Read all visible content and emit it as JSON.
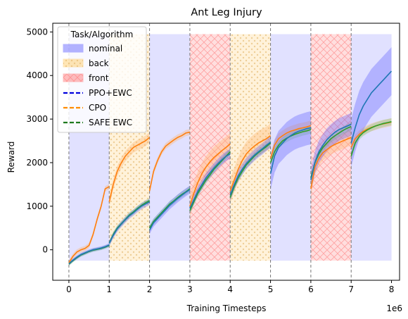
{
  "chart_data": {
    "type": "line",
    "title": "Ant Leg Injury",
    "xlabel": "Training Timesteps",
    "ylabel": "Reward",
    "x_offset_label": "1e6",
    "xlim": [
      -0.4,
      8.2
    ],
    "ylim": [
      -700,
      5200
    ],
    "x_ticks": [
      0,
      1,
      2,
      3,
      4,
      5,
      6,
      7,
      8
    ],
    "x_tick_labels": [
      "0",
      "1",
      "2",
      "3",
      "4",
      "5",
      "6",
      "7",
      "8"
    ],
    "y_ticks": [
      0,
      1000,
      2000,
      3000,
      4000,
      5000
    ],
    "y_tick_labels": [
      "0",
      "1000",
      "2000",
      "3000",
      "4000",
      "5000"
    ],
    "task_boundaries": [
      0,
      1,
      2,
      3,
      4,
      5,
      6,
      7
    ],
    "task_regions": {
      "y_range": [
        -250,
        4950
      ],
      "spans": [
        {
          "task": "nominal",
          "x": [
            0,
            1
          ]
        },
        {
          "task": "back",
          "x": [
            1,
            2
          ]
        },
        {
          "task": "nominal",
          "x": [
            2,
            3
          ]
        },
        {
          "task": "front",
          "x": [
            3,
            4
          ]
        },
        {
          "task": "back",
          "x": [
            4,
            5
          ]
        },
        {
          "task": "nominal",
          "x": [
            5,
            6
          ]
        },
        {
          "task": "front",
          "x": [
            6,
            7
          ]
        },
        {
          "task": "nominal",
          "x": [
            7,
            8
          ]
        }
      ]
    },
    "legend": {
      "title": "Task/Algorithm",
      "placement": "upper-left",
      "entries": [
        {
          "label": "nominal",
          "kind": "patch",
          "task": "nominal"
        },
        {
          "label": "back",
          "kind": "patch",
          "task": "back"
        },
        {
          "label": "front",
          "kind": "patch",
          "task": "front"
        },
        {
          "label": "PPO+EWC",
          "kind": "line",
          "color": "#0000dd"
        },
        {
          "label": "CPO",
          "kind": "line",
          "color": "#ff8c00"
        },
        {
          "label": "SAFE EWC",
          "kind": "line",
          "color": "#1f7a1f"
        }
      ]
    },
    "task_colors": {
      "nominal": "#7777ff",
      "back": "#ffd27a",
      "front": "#ff8888"
    },
    "series": [
      {
        "name": "CPO",
        "color": "#ff7f0e",
        "band_color": "#ffb366",
        "segments": [
          {
            "x": [
              0,
              0.1,
              0.2,
              0.3,
              0.4,
              0.5,
              0.6,
              0.7,
              0.8,
              0.9,
              1.0
            ],
            "y": [
              -300,
              -150,
              -50,
              0,
              30,
              100,
              350,
              700,
              1000,
              1400,
              1450
            ],
            "band": 60
          },
          {
            "x": [
              1.0,
              1.1,
              1.2,
              1.3,
              1.4,
              1.5,
              1.6,
              1.7,
              1.8,
              1.9,
              2.0
            ],
            "y": [
              1100,
              1500,
              1800,
              2000,
              2150,
              2250,
              2350,
              2400,
              2450,
              2500,
              2580
            ],
            "band": 120
          },
          {
            "x": [
              2.0,
              2.1,
              2.2,
              2.3,
              2.4,
              2.5,
              2.6,
              2.7,
              2.8,
              2.9,
              3.0
            ],
            "y": [
              1350,
              1800,
              2050,
              2250,
              2380,
              2450,
              2520,
              2580,
              2620,
              2680,
              2700
            ],
            "band": 70
          },
          {
            "x": [
              3.0,
              3.1,
              3.2,
              3.3,
              3.4,
              3.5,
              3.6,
              3.7,
              3.8,
              3.9,
              4.0
            ],
            "y": [
              1000,
              1300,
              1550,
              1750,
              1900,
              2020,
              2120,
              2200,
              2280,
              2350,
              2430
            ],
            "band": 250
          },
          {
            "x": [
              4.0,
              4.1,
              4.2,
              4.3,
              4.4,
              4.5,
              4.6,
              4.7,
              4.8,
              4.9,
              5.0
            ],
            "y": [
              1350,
              1600,
              1850,
              2050,
              2200,
              2300,
              2380,
              2450,
              2500,
              2550,
              2620
            ],
            "band": 280
          },
          {
            "x": [
              5.0,
              5.1,
              5.2,
              5.3,
              5.4,
              5.5,
              5.6,
              5.7,
              5.8,
              5.9,
              6.0
            ],
            "y": [
              2100,
              2400,
              2550,
              2620,
              2680,
              2720,
              2750,
              2780,
              2800,
              2820,
              2850
            ],
            "band": 120
          },
          {
            "x": [
              6.0,
              6.1,
              6.2,
              6.3,
              6.4,
              6.5,
              6.6,
              6.7,
              6.8,
              6.9,
              7.0
            ],
            "y": [
              1400,
              1900,
              2100,
              2230,
              2300,
              2370,
              2420,
              2460,
              2500,
              2540,
              2580
            ],
            "band": 180
          },
          {
            "x": [
              7.0,
              7.1,
              7.2,
              7.3,
              7.4,
              7.5,
              7.6,
              7.7,
              7.8,
              7.9,
              8.0
            ],
            "y": [
              2350,
              2550,
              2650,
              2720,
              2770,
              2810,
              2840,
              2870,
              2890,
              2910,
              2930
            ],
            "band": 90
          }
        ]
      },
      {
        "name": "SAFE EWC",
        "color": "#2ca02c",
        "band_color": "#7fcc7f",
        "segments": [
          {
            "x": [
              0,
              0.1,
              0.2,
              0.3,
              0.4,
              0.5,
              0.6,
              0.7,
              0.8,
              0.9,
              1.0
            ],
            "y": [
              -330,
              -250,
              -180,
              -120,
              -80,
              -40,
              -10,
              10,
              30,
              60,
              100
            ],
            "band": 40
          },
          {
            "x": [
              1.0,
              1.1,
              1.2,
              1.3,
              1.4,
              1.5,
              1.6,
              1.7,
              1.8,
              1.9,
              2.0
            ],
            "y": [
              150,
              350,
              500,
              600,
              700,
              800,
              870,
              950,
              1020,
              1080,
              1130
            ],
            "band": 60
          },
          {
            "x": [
              2.0,
              2.1,
              2.2,
              2.3,
              2.4,
              2.5,
              2.6,
              2.7,
              2.8,
              2.9,
              3.0
            ],
            "y": [
              500,
              650,
              750,
              850,
              950,
              1050,
              1120,
              1200,
              1270,
              1330,
              1400
            ],
            "band": 70
          },
          {
            "x": [
              3.0,
              3.1,
              3.2,
              3.3,
              3.4,
              3.5,
              3.6,
              3.7,
              3.8,
              3.9,
              4.0
            ],
            "y": [
              900,
              1100,
              1300,
              1450,
              1600,
              1720,
              1850,
              1950,
              2050,
              2150,
              2250
            ],
            "band": 80
          },
          {
            "x": [
              4.0,
              4.1,
              4.2,
              4.3,
              4.4,
              4.5,
              4.6,
              4.7,
              4.8,
              4.9,
              5.0
            ],
            "y": [
              1200,
              1450,
              1650,
              1800,
              1950,
              2050,
              2150,
              2230,
              2300,
              2370,
              2450
            ],
            "band": 80
          },
          {
            "x": [
              5.0,
              5.1,
              5.2,
              5.3,
              5.4,
              5.5,
              5.6,
              5.7,
              5.8,
              5.9,
              6.0
            ],
            "y": [
              2000,
              2250,
              2400,
              2500,
              2560,
              2610,
              2650,
              2680,
              2710,
              2730,
              2760
            ],
            "band": 90
          },
          {
            "x": [
              6.0,
              6.1,
              6.2,
              6.3,
              6.4,
              6.5,
              6.6,
              6.7,
              6.8,
              6.9,
              7.0
            ],
            "y": [
              1650,
              2000,
              2200,
              2350,
              2450,
              2550,
              2620,
              2680,
              2740,
              2790,
              2830
            ],
            "band": 90
          },
          {
            "x": [
              7.0,
              7.1,
              7.2,
              7.3,
              7.4,
              7.5,
              7.6,
              7.7,
              7.8,
              7.9,
              8.0
            ],
            "y": [
              2150,
              2450,
              2600,
              2690,
              2750,
              2800,
              2840,
              2870,
              2900,
              2920,
              2940
            ],
            "band": 80
          }
        ]
      },
      {
        "name": "PPO+EWC",
        "color": "#1f77b4",
        "band_color": "#5b5bff",
        "segments": [
          {
            "x": [
              0,
              0.1,
              0.2,
              0.3,
              0.4,
              0.5,
              0.6,
              0.7,
              0.8,
              0.9,
              1.0
            ],
            "y": [
              -320,
              -240,
              -170,
              -110,
              -70,
              -30,
              0,
              20,
              40,
              70,
              110
            ],
            "band": 40
          },
          {
            "x": [
              1.0,
              1.1,
              1.2,
              1.3,
              1.4,
              1.5,
              1.6,
              1.7,
              1.8,
              1.9,
              2.0
            ],
            "y": [
              150,
              330,
              480,
              590,
              690,
              780,
              850,
              930,
              1000,
              1050,
              1100
            ],
            "band": 70
          },
          {
            "x": [
              2.0,
              2.1,
              2.2,
              2.3,
              2.4,
              2.5,
              2.6,
              2.7,
              2.8,
              2.9,
              3.0
            ],
            "y": [
              450,
              620,
              720,
              820,
              920,
              1020,
              1100,
              1180,
              1250,
              1320,
              1380
            ],
            "band": 90
          },
          {
            "x": [
              3.0,
              3.1,
              3.2,
              3.3,
              3.4,
              3.5,
              3.6,
              3.7,
              3.8,
              3.9,
              4.0
            ],
            "y": [
              950,
              1150,
              1350,
              1500,
              1650,
              1770,
              1880,
              1980,
              2070,
              2150,
              2200
            ],
            "band": 110
          },
          {
            "x": [
              4.0,
              4.1,
              4.2,
              4.3,
              4.4,
              4.5,
              4.6,
              4.7,
              4.8,
              4.9,
              5.0
            ],
            "y": [
              1250,
              1500,
              1700,
              1850,
              1980,
              2080,
              2170,
              2250,
              2320,
              2400,
              2470
            ],
            "band": 130
          },
          {
            "x": [
              5.0,
              5.1,
              5.2,
              5.3,
              5.4,
              5.5,
              5.6,
              5.7,
              5.8,
              5.9,
              6.0
            ],
            "y": [
              1750,
              2150,
              2350,
              2450,
              2550,
              2620,
              2680,
              2720,
              2750,
              2780,
              2800
            ],
            "band": 380
          },
          {
            "x": [
              6.0,
              6.1,
              6.2,
              6.3,
              6.4,
              6.5,
              6.6,
              6.7,
              6.8,
              6.9,
              7.0
            ],
            "y": [
              1600,
              2000,
              2250,
              2400,
              2530,
              2620,
              2700,
              2760,
              2800,
              2840,
              2880
            ],
            "band": 260
          },
          {
            "x": [
              7.0,
              7.1,
              7.2,
              7.3,
              7.4,
              7.5,
              7.6,
              7.7,
              7.8,
              7.9,
              8.0
            ],
            "y": [
              2450,
              2800,
              3100,
              3300,
              3450,
              3600,
              3700,
              3800,
              3900,
              4000,
              4100
            ],
            "band": 550
          }
        ]
      }
    ]
  }
}
